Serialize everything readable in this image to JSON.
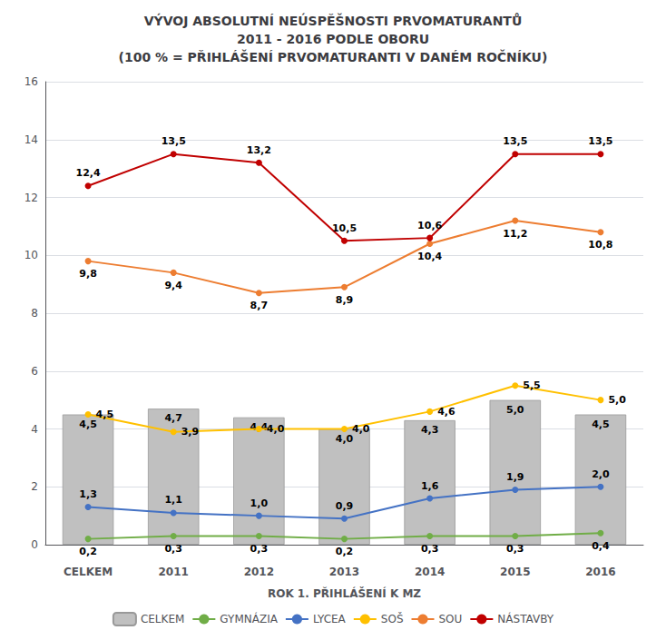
{
  "chart_data": {
    "type": "bar",
    "title": "VÝVOJ ABSOLUTNÍ NEÚSPĚŠNOSTI PRVOMATURANTŮ\n2011 - 2016 PODLE OBORU\n(100 % = PŘIHLÁŠENÍ PRVOMATURANTI V DANÉM ROČNÍKU)",
    "xlabel": "ROK 1. PŘIHLÁŠENÍ K MZ",
    "categories": [
      "CELKEM",
      "2011",
      "2012",
      "2013",
      "2014",
      "2015",
      "2016"
    ],
    "series": [
      {
        "name": "CELKEM",
        "type": "bar",
        "color": "#c0c0c0",
        "values": [
          4.5,
          4.7,
          4.4,
          4.0,
          4.3,
          5.0,
          4.5
        ],
        "value_labels": [
          "4,5",
          "4,7",
          "4,4",
          "4,0",
          "4,3",
          "5,0",
          "4,5"
        ]
      },
      {
        "name": "GYMNÁZIA",
        "type": "line",
        "marker": "circle",
        "color": "#70ad47",
        "values": [
          0.2,
          0.3,
          0.3,
          0.2,
          0.3,
          0.3,
          0.4
        ],
        "value_labels": [
          "0,2",
          "0,3",
          "0,3",
          "0,2",
          "0,3",
          "0,3",
          "0,4"
        ]
      },
      {
        "name": "LYCEA",
        "type": "line",
        "marker": "circle",
        "color": "#4472c4",
        "values": [
          1.3,
          1.1,
          1.0,
          0.9,
          1.6,
          1.9,
          2.0
        ],
        "value_labels": [
          "1,3",
          "1,1",
          "1,0",
          "0,9",
          "1,6",
          "1,9",
          "2,0"
        ]
      },
      {
        "name": "SOŠ",
        "type": "line",
        "marker": "circle",
        "color": "#ffc000",
        "values": [
          4.5,
          3.9,
          4.0,
          4.0,
          4.6,
          5.5,
          5.0
        ],
        "value_labels": [
          "4,5",
          "3,9",
          "4,0",
          "4,0",
          "4,6",
          "5,5",
          "5,0"
        ]
      },
      {
        "name": "SOU",
        "type": "line",
        "marker": "circle",
        "color": "#ed7d31",
        "values": [
          9.8,
          9.4,
          8.7,
          8.9,
          10.4,
          11.2,
          10.8
        ],
        "value_labels": [
          "9,8",
          "9,4",
          "8,7",
          "8,9",
          "10,4",
          "11,2",
          "10,8"
        ]
      },
      {
        "name": "NÁSTAVBY",
        "type": "line",
        "marker": "circle",
        "color": "#c00000",
        "values": [
          12.4,
          13.5,
          13.2,
          10.5,
          10.6,
          13.5,
          13.5
        ],
        "value_labels": [
          "12,4",
          "13,5",
          "13,2",
          "10,5",
          "10,6",
          "13,5",
          "13,5"
        ]
      }
    ],
    "ylim": [
      0,
      16
    ],
    "yticks": [
      0,
      2,
      4,
      6,
      8,
      10,
      12,
      14,
      16
    ],
    "grid": true,
    "legend": "bottom",
    "data_labels": true
  }
}
